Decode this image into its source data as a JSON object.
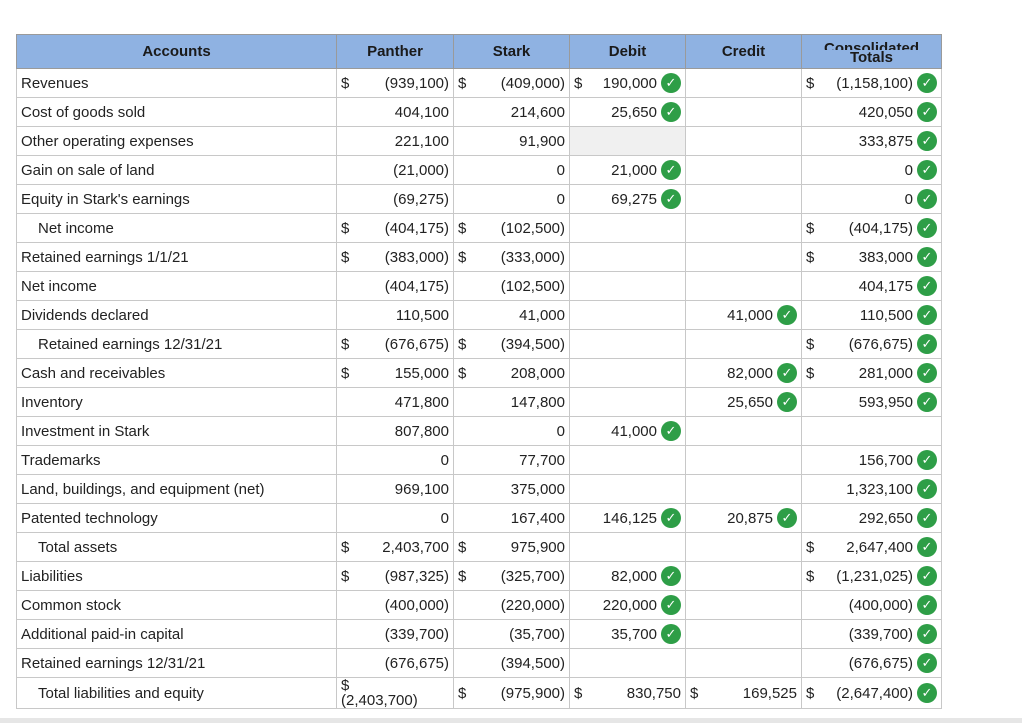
{
  "headers": {
    "accounts": "Accounts",
    "panther": "Panther",
    "stark": "Stark",
    "debit": "Debit",
    "credit": "Credit",
    "consolidated_line1": "Consolidated",
    "consolidated_line2": "Totals"
  },
  "check_glyph": "✓",
  "rows": [
    {
      "label": "Revenues",
      "sub": false,
      "panther": {
        "cur": "$",
        "amt": "(939,100)"
      },
      "stark": {
        "cur": "$",
        "amt": "(409,000)"
      },
      "debit": {
        "cur": "$",
        "amt": "190,000",
        "check": true
      },
      "credit": null,
      "total": {
        "cur": "$",
        "amt": "(1,158,100)",
        "check": true
      }
    },
    {
      "label": "Cost of goods sold",
      "sub": false,
      "panther": {
        "cur": "",
        "amt": "404,100"
      },
      "stark": {
        "cur": "",
        "amt": "214,600"
      },
      "debit": {
        "cur": "",
        "amt": "25,650",
        "check": true
      },
      "credit": null,
      "total": {
        "cur": "",
        "amt": "420,050",
        "check": true
      }
    },
    {
      "label": "Other operating expenses",
      "sub": false,
      "panther": {
        "cur": "",
        "amt": "221,100"
      },
      "stark": {
        "cur": "",
        "amt": "91,900"
      },
      "debit": null,
      "debit_gray": true,
      "credit": null,
      "total": {
        "cur": "",
        "amt": "333,875",
        "check": true
      }
    },
    {
      "label": "Gain on sale of land",
      "sub": false,
      "panther": {
        "cur": "",
        "amt": "(21,000)"
      },
      "stark": {
        "cur": "",
        "amt": "0"
      },
      "debit": {
        "cur": "",
        "amt": "21,000",
        "check": true
      },
      "credit": null,
      "total": {
        "cur": "",
        "amt": "0",
        "check": true
      }
    },
    {
      "label": "Equity in Stark's earnings",
      "sub": false,
      "panther": {
        "cur": "",
        "amt": "(69,275)"
      },
      "stark": {
        "cur": "",
        "amt": "0"
      },
      "debit": {
        "cur": "",
        "amt": "69,275",
        "check": true
      },
      "credit": null,
      "total": {
        "cur": "",
        "amt": "0",
        "check": true
      }
    },
    {
      "label": "Net income",
      "sub": true,
      "total_row": true,
      "panther": {
        "cur": "$",
        "amt": "(404,175)"
      },
      "stark": {
        "cur": "$",
        "amt": "(102,500)"
      },
      "debit": null,
      "credit": null,
      "total": {
        "cur": "$",
        "amt": "(404,175)",
        "check": true
      }
    },
    {
      "label": "Retained earnings 1/1/21",
      "sub": false,
      "panther": {
        "cur": "$",
        "amt": "(383,000)"
      },
      "stark": {
        "cur": "$",
        "amt": "(333,000)"
      },
      "debit": null,
      "credit": null,
      "total": {
        "cur": "$",
        "amt": "383,000",
        "check": true
      }
    },
    {
      "label": "Net income",
      "sub": false,
      "panther": {
        "cur": "",
        "amt": "(404,175)"
      },
      "stark": {
        "cur": "",
        "amt": "(102,500)"
      },
      "debit": null,
      "credit": null,
      "total": {
        "cur": "",
        "amt": "404,175",
        "check": true
      }
    },
    {
      "label": "Dividends declared",
      "sub": false,
      "panther": {
        "cur": "",
        "amt": "110,500"
      },
      "stark": {
        "cur": "",
        "amt": "41,000"
      },
      "debit": null,
      "credit": {
        "cur": "",
        "amt": "41,000",
        "check": true
      },
      "total": {
        "cur": "",
        "amt": "110,500",
        "check": true
      }
    },
    {
      "label": "Retained earnings 12/31/21",
      "sub": true,
      "total_row": true,
      "panther": {
        "cur": "$",
        "amt": "(676,675)"
      },
      "stark": {
        "cur": "$",
        "amt": "(394,500)"
      },
      "debit": null,
      "credit": null,
      "total": {
        "cur": "$",
        "amt": "(676,675)",
        "check": true
      }
    },
    {
      "label": "Cash and receivables",
      "sub": false,
      "panther": {
        "cur": "$",
        "amt": "155,000"
      },
      "stark": {
        "cur": "$",
        "amt": "208,000"
      },
      "debit": null,
      "credit": {
        "cur": "",
        "amt": "82,000",
        "check": true
      },
      "total": {
        "cur": "$",
        "amt": "281,000",
        "check": true
      }
    },
    {
      "label": "Inventory",
      "sub": false,
      "panther": {
        "cur": "",
        "amt": "471,800"
      },
      "stark": {
        "cur": "",
        "amt": "147,800"
      },
      "debit": null,
      "credit": {
        "cur": "",
        "amt": "25,650",
        "check": true
      },
      "total": {
        "cur": "",
        "amt": "593,950",
        "check": true
      }
    },
    {
      "label": "Investment in Stark",
      "sub": false,
      "panther": {
        "cur": "",
        "amt": "807,800"
      },
      "stark": {
        "cur": "",
        "amt": "0"
      },
      "debit": {
        "cur": "",
        "amt": "41,000",
        "check": true
      },
      "credit": null,
      "total": null
    },
    {
      "label": "Trademarks",
      "sub": false,
      "panther": {
        "cur": "",
        "amt": "0"
      },
      "stark": {
        "cur": "",
        "amt": "77,700"
      },
      "debit": null,
      "credit": null,
      "total": {
        "cur": "",
        "amt": "156,700",
        "check": true
      }
    },
    {
      "label": "Land, buildings, and equipment (net)",
      "sub": false,
      "panther": {
        "cur": "",
        "amt": "969,100"
      },
      "stark": {
        "cur": "",
        "amt": "375,000"
      },
      "debit": null,
      "credit": null,
      "total": {
        "cur": "",
        "amt": "1,323,100",
        "check": true
      }
    },
    {
      "label": "Patented technology",
      "sub": false,
      "panther": {
        "cur": "",
        "amt": "0"
      },
      "stark": {
        "cur": "",
        "amt": "167,400"
      },
      "debit": {
        "cur": "",
        "amt": "146,125",
        "check": true
      },
      "credit": {
        "cur": "",
        "amt": "20,875",
        "check": true
      },
      "total": {
        "cur": "",
        "amt": "292,650",
        "check": true
      }
    },
    {
      "label": "Total assets",
      "sub": true,
      "total_row": true,
      "panther": {
        "cur": "$",
        "amt": "2,403,700"
      },
      "stark": {
        "cur": "$",
        "amt": "975,900"
      },
      "debit": null,
      "credit": null,
      "total": {
        "cur": "$",
        "amt": "2,647,400",
        "check": true
      }
    },
    {
      "label": "Liabilities",
      "sub": false,
      "panther": {
        "cur": "$",
        "amt": "(987,325)"
      },
      "stark": {
        "cur": "$",
        "amt": "(325,700)"
      },
      "debit": {
        "cur": "",
        "amt": "82,000",
        "check": true
      },
      "credit": null,
      "total": {
        "cur": "$",
        "amt": "(1,231,025)",
        "check": true
      }
    },
    {
      "label": "Common stock",
      "sub": false,
      "panther": {
        "cur": "",
        "amt": "(400,000)"
      },
      "stark": {
        "cur": "",
        "amt": "(220,000)"
      },
      "debit": {
        "cur": "",
        "amt": "220,000",
        "check": true
      },
      "credit": null,
      "total": {
        "cur": "",
        "amt": "(400,000)",
        "check": true
      }
    },
    {
      "label": "Additional paid-in capital",
      "sub": false,
      "panther": {
        "cur": "",
        "amt": "(339,700)"
      },
      "stark": {
        "cur": "",
        "amt": "(35,700)"
      },
      "debit": {
        "cur": "",
        "amt": "35,700",
        "check": true
      },
      "credit": null,
      "total": {
        "cur": "",
        "amt": "(339,700)",
        "check": true
      }
    },
    {
      "label": "Retained earnings 12/31/21",
      "sub": false,
      "panther": {
        "cur": "",
        "amt": "(676,675)"
      },
      "stark": {
        "cur": "",
        "amt": "(394,500)"
      },
      "debit": null,
      "credit": null,
      "total": {
        "cur": "",
        "amt": "(676,675)",
        "check": true
      }
    },
    {
      "label": "Total liabilities and equity",
      "sub": true,
      "total_row": true,
      "two_line_panther": true,
      "panther": {
        "cur": "$",
        "amt": "(2,403,700)"
      },
      "stark": {
        "cur": "$",
        "amt": "(975,900)"
      },
      "debit": {
        "cur": "$",
        "amt": "830,750",
        "check": false
      },
      "credit": {
        "cur": "$",
        "amt": "169,525",
        "check": false
      },
      "total": {
        "cur": "$",
        "amt": "(2,647,400)",
        "check": true
      }
    }
  ]
}
